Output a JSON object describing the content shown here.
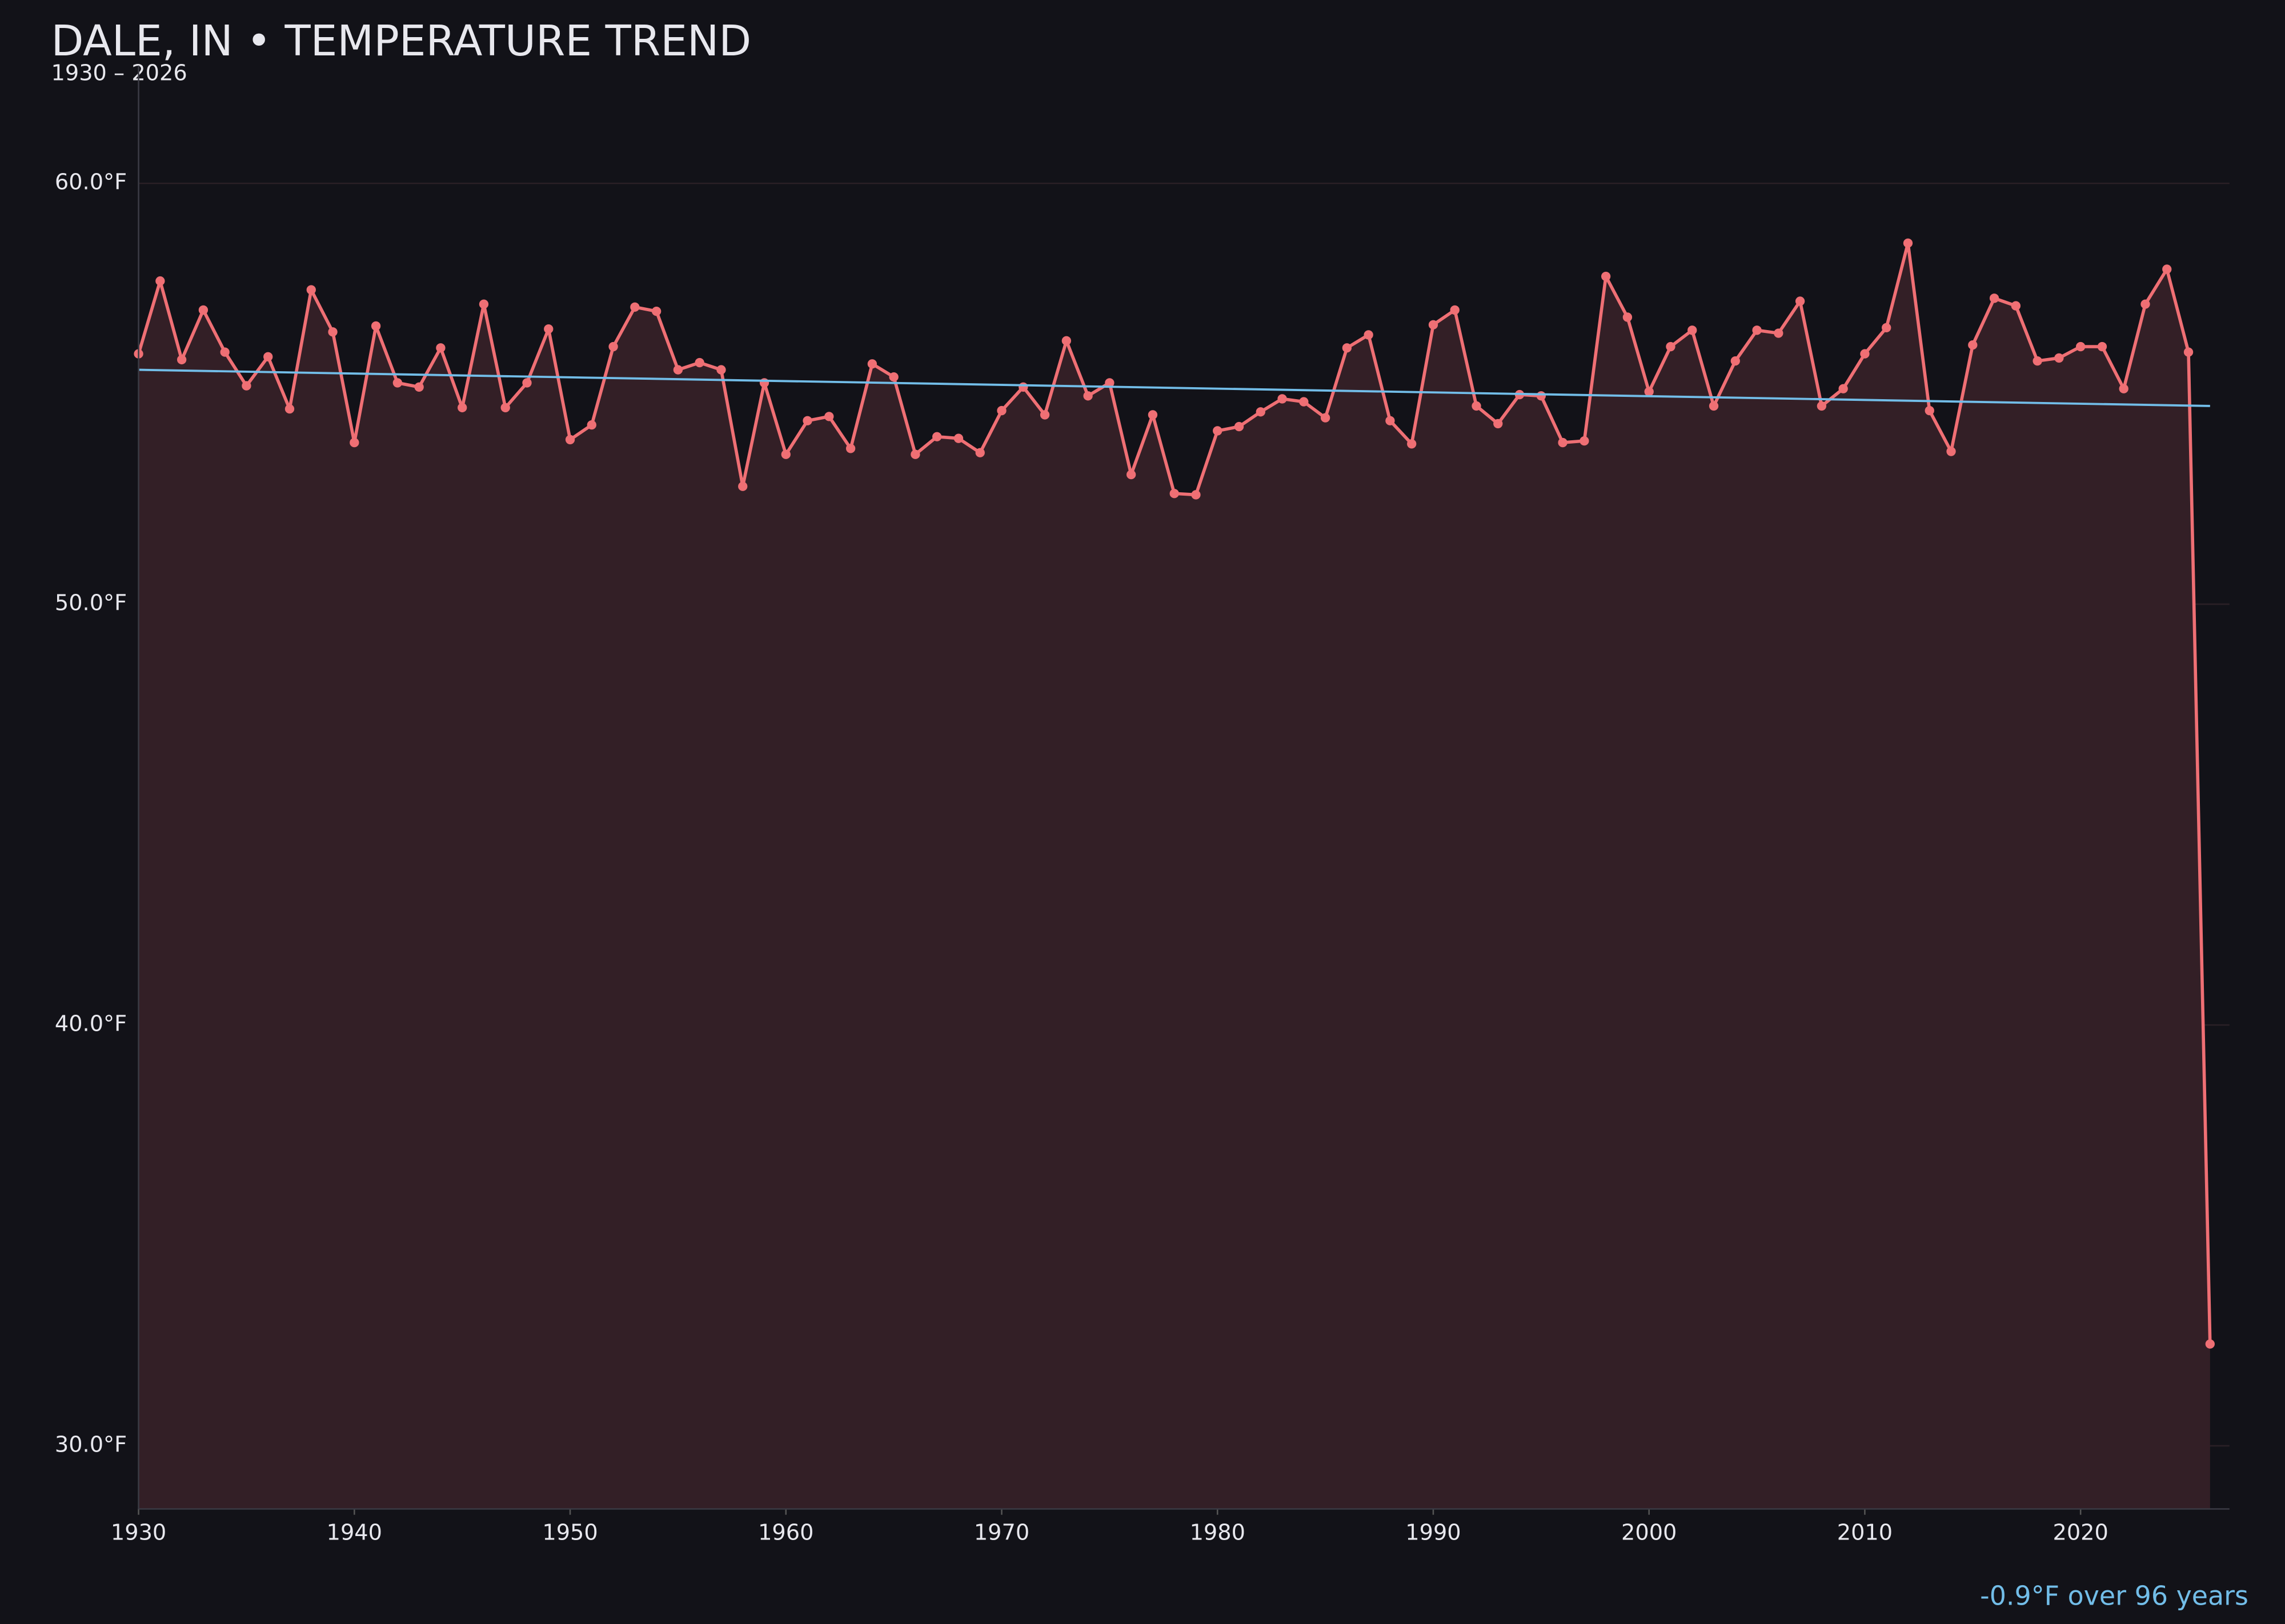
{
  "chart_data": {
    "type": "line",
    "title": "DALE, IN • TEMPERATURE TREND",
    "subtitle": "1930 – 2026",
    "annotation": "-0.9°F over 96 years",
    "x": [
      1930,
      1931,
      1932,
      1933,
      1934,
      1935,
      1936,
      1937,
      1938,
      1939,
      1940,
      1941,
      1942,
      1943,
      1944,
      1945,
      1946,
      1947,
      1948,
      1949,
      1950,
      1951,
      1952,
      1953,
      1954,
      1955,
      1956,
      1957,
      1958,
      1959,
      1960,
      1961,
      1962,
      1963,
      1964,
      1965,
      1966,
      1967,
      1968,
      1969,
      1970,
      1971,
      1972,
      1973,
      1974,
      1975,
      1976,
      1977,
      1978,
      1979,
      1980,
      1981,
      1982,
      1983,
      1984,
      1985,
      1986,
      1987,
      1988,
      1989,
      1990,
      1991,
      1992,
      1993,
      1994,
      1995,
      1996,
      1997,
      1998,
      1999,
      2000,
      2001,
      2002,
      2003,
      2004,
      2005,
      2006,
      2007,
      2008,
      2009,
      2010,
      2011,
      2012,
      2013,
      2014,
      2015,
      2016,
      2017,
      2018,
      2019,
      2020,
      2021,
      2022,
      2023,
      2024,
      2025,
      2026
    ],
    "series": [
      {
        "color": "#ef6f74",
        "values": [
          55.95,
          57.68,
          55.81,
          56.99,
          55.99,
          55.19,
          55.88,
          54.64,
          57.47,
          56.47,
          53.84,
          56.61,
          55.26,
          55.16,
          56.09,
          54.67,
          57.13,
          54.67,
          55.26,
          56.54,
          53.91,
          54.26,
          56.12,
          57.06,
          56.96,
          55.57,
          55.74,
          55.57,
          52.8,
          55.26,
          53.56,
          54.36,
          54.46,
          53.7,
          55.71,
          55.4,
          53.56,
          53.98,
          53.94,
          53.6,
          54.6,
          55.16,
          54.5,
          56.26,
          54.95,
          55.26,
          53.08,
          54.5,
          52.63,
          52.6,
          54.12,
          54.22,
          54.57,
          54.88,
          54.81,
          54.43,
          56.09,
          56.4,
          54.36,
          53.81,
          56.64,
          56.99,
          54.71,
          54.29,
          54.98,
          54.95,
          53.84,
          53.88,
          57.79,
          56.82,
          55.05,
          56.12,
          56.51,
          54.71,
          55.78,
          56.51,
          56.44,
          57.2,
          54.71,
          55.12,
          55.95,
          56.57,
          58.58,
          54.6,
          53.63,
          56.16,
          57.27,
          57.09,
          55.78,
          55.85,
          56.12,
          56.12,
          55.12,
          57.13,
          57.96,
          55.99,
          32.42
        ]
      }
    ],
    "trend": {
      "color": "#72bde8",
      "x": [
        1930,
        2026
      ],
      "values": [
        55.57,
        54.71
      ]
    },
    "area_color": "#331f26",
    "grid": true,
    "xlim": [
      1930,
      2026.9
    ],
    "ylim": [
      28.5,
      62.8
    ],
    "xticks": [
      1930,
      1940,
      1950,
      1960,
      1970,
      1980,
      1990,
      2000,
      2010,
      2020
    ],
    "yticks": [
      {
        "value": 30,
        "label": "30.0°F"
      },
      {
        "value": 40,
        "label": "40.0°F"
      },
      {
        "value": 50,
        "label": "50.0°F"
      },
      {
        "value": 60,
        "label": "60.0°F"
      }
    ]
  }
}
